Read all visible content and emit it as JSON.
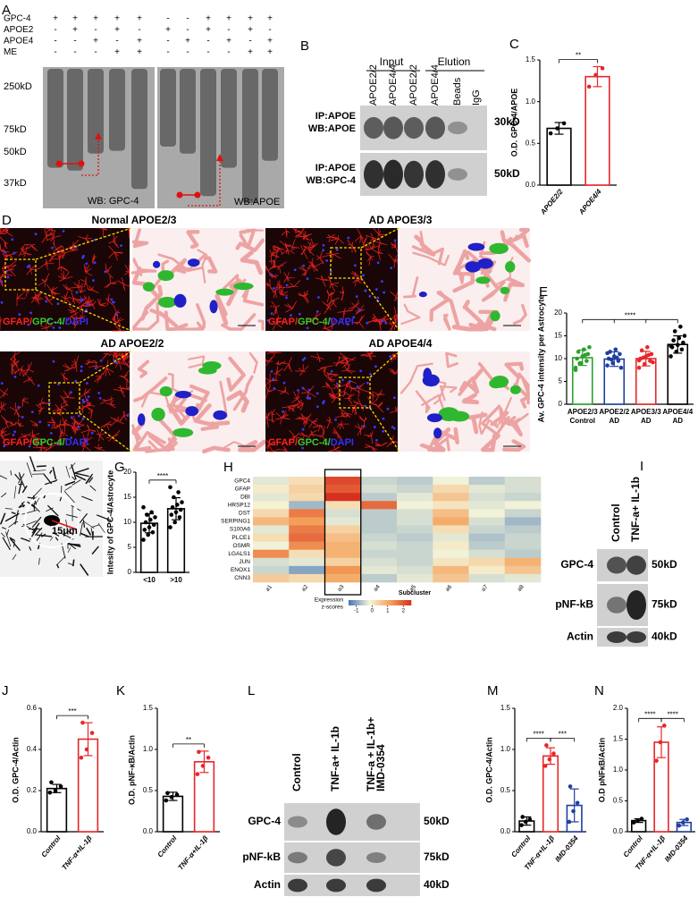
{
  "figure": {
    "panel_labels": [
      "A",
      "B",
      "C",
      "D",
      "E",
      "F",
      "G",
      "H",
      "I",
      "J",
      "K",
      "L",
      "M",
      "N"
    ],
    "panel_a": {
      "lane_rows": [
        {
          "label": "GPC-4",
          "signs": [
            "+",
            "+",
            "+",
            "+",
            "+",
            "-",
            "-",
            "+",
            "+",
            "+",
            "+"
          ]
        },
        {
          "label": "APOE2",
          "signs": [
            "-",
            "+",
            "-",
            "+",
            "-",
            "+",
            "-",
            "+",
            "-",
            "+",
            "-"
          ]
        },
        {
          "label": "APOE4",
          "signs": [
            "-",
            "-",
            "+",
            "-",
            "+",
            "-",
            "+",
            "-",
            "+",
            "-",
            "+"
          ]
        },
        {
          "label": "ME",
          "signs": [
            "-",
            "-",
            "-",
            "+",
            "+",
            "-",
            "-",
            "-",
            "-",
            "+",
            "+"
          ]
        }
      ],
      "mw": [
        "250kD",
        "75kD",
        "50kD",
        "37kD"
      ],
      "wb": [
        "WB: GPC-4",
        "WB:APOE"
      ]
    },
    "panel_b": {
      "groups": [
        "Input",
        "Elution"
      ],
      "lanes": [
        "APOE2/2",
        "APOE4/4",
        "APOE2/2",
        "APOE4/4",
        "Beads",
        "IgG"
      ],
      "rows": [
        {
          "label": [
            "IP:APOE",
            "WB:APOE"
          ],
          "mw": "30kD"
        },
        {
          "label": [
            "IP:APOE",
            "WB:GPC-4"
          ],
          "mw": "50kD"
        }
      ]
    },
    "panel_d": {
      "titles": [
        "Normal APOE2/3",
        "AD APOE3/3",
        "AD APOE2/2",
        "AD APOE4/4"
      ],
      "stain": [
        "GFAP/",
        "GPC-4/",
        "DAPI"
      ]
    },
    "panel_f": {
      "scale": "15μm"
    },
    "panel_i": {
      "lanes": [
        [
          "Control"
        ],
        [
          "TNF-a+ IL-1b"
        ]
      ],
      "rows": [
        {
          "label": "GPC-4",
          "mw": "50kD"
        },
        {
          "label": "pNF-kB",
          "mw": "75kD"
        },
        {
          "label": "Actin",
          "mw": "40kD"
        }
      ]
    },
    "panel_l": {
      "lanes": [
        [
          "Control"
        ],
        [
          "TNF-a+ IL-1b"
        ],
        [
          "TNF-a + IL-1b+",
          "IMD-0354"
        ]
      ],
      "rows": [
        {
          "label": "GPC-4",
          "mw": "50kD"
        },
        {
          "label": "pNF-kB",
          "mw": "75kD"
        },
        {
          "label": "Actin",
          "mw": "40kD"
        }
      ]
    }
  },
  "chart_data": [
    {
      "type": "bar",
      "ylabel": "O.D. GPC-4/APOE",
      "categories": [
        [
          "APOE2/2"
        ],
        [
          "APOE4/4"
        ]
      ],
      "values": [
        0.68,
        1.3
      ],
      "errors": [
        0.07,
        0.12
      ],
      "points": [
        [
          0.62,
          0.68,
          0.74
        ],
        [
          1.18,
          1.32,
          1.4
        ]
      ],
      "colors": [
        "#000000",
        "#e8262a"
      ],
      "ylim": [
        0,
        1.5
      ],
      "yticks": [
        {
          "value": 0,
          "label": "0.0"
        },
        0.5,
        {
          "value": 1,
          "label": "1.0"
        },
        1.5
      ],
      "significance": [
        {
          "between": [
            0,
            1
          ],
          "label": "**"
        }
      ]
    },
    {
      "type": "bar",
      "ylabel": "Av. GPC-4 intensity per Astrocyte",
      "categories": [
        [
          "APOE2/3",
          "Control"
        ],
        [
          "APOE2/2",
          "AD"
        ],
        [
          "APOE3/3",
          "AD"
        ],
        [
          "APOE4/4",
          "AD"
        ]
      ],
      "values": [
        10.2,
        9.9,
        10.0,
        13.1
      ],
      "errors": [
        1.7,
        1.6,
        1.6,
        1.9
      ],
      "points": [
        [
          8,
          9,
          9.5,
          10,
          10.5,
          11,
          11.5,
          12,
          12.5,
          9,
          10.8,
          7.5
        ],
        [
          8.5,
          9,
          9.5,
          10,
          10.5,
          11,
          11.5,
          12,
          8,
          9.8,
          10.2,
          11.2
        ],
        [
          8,
          8.8,
          9.5,
          10,
          10.5,
          11,
          11.8,
          12.5,
          9.2,
          10.2,
          10.8,
          9.6
        ],
        [
          10.5,
          11.5,
          12,
          12.5,
          13,
          13.5,
          14,
          14.5,
          15,
          16,
          17,
          12.8
        ]
      ],
      "colors": [
        "#2ca02c",
        "#1f3fa0",
        "#e8262a",
        "#000000"
      ],
      "ylim": [
        0,
        20
      ],
      "yticks": [
        0,
        5,
        10,
        15,
        20
      ],
      "significance": [
        {
          "between": [
            0,
            3
          ],
          "label": "****"
        }
      ]
    },
    {
      "type": "bar",
      "ylabel": "Intesity of GPC-4/Astrocyte",
      "categories": [
        [
          "<10"
        ],
        [
          ">10"
        ]
      ],
      "values": [
        9.8,
        12.7
      ],
      "errors": [
        1.9,
        2.2
      ],
      "points": [
        [
          6.5,
          7.5,
          8,
          8.5,
          9,
          9.5,
          10,
          10.5,
          11,
          11.5,
          12,
          13
        ],
        [
          9,
          10,
          11,
          11.5,
          12,
          12.5,
          13,
          13.5,
          14,
          15,
          16,
          17
        ]
      ],
      "colors": [
        "#000000",
        "#000000"
      ],
      "ylim": [
        0,
        20
      ],
      "yticks": [
        0,
        5,
        10,
        15,
        20
      ],
      "significance": [
        {
          "between": [
            0,
            1
          ],
          "label": "****"
        }
      ]
    },
    {
      "type": "bar",
      "ylabel": "O.D. GPC-4/Actin",
      "categories": [
        [
          "Control"
        ],
        [
          "TNF-α+IL-1β"
        ]
      ],
      "values": [
        0.21,
        0.45
      ],
      "errors": [
        0.02,
        0.08
      ],
      "points": [
        [
          0.19,
          0.2,
          0.22,
          0.24
        ],
        [
          0.36,
          0.4,
          0.48,
          0.53
        ]
      ],
      "colors": [
        "#000000",
        "#e8262a"
      ],
      "ylim": [
        0,
        0.6
      ],
      "yticks": [
        {
          "value": 0,
          "label": "0.0"
        },
        0.2,
        0.4,
        0.6
      ],
      "significance": [
        {
          "between": [
            0,
            1
          ],
          "label": "***"
        }
      ]
    },
    {
      "type": "bar",
      "ylabel": "O.D. pNF-κB/Actin",
      "categories": [
        [
          "Control"
        ],
        [
          "TNF-α+IL-1β"
        ]
      ],
      "values": [
        0.43,
        0.85
      ],
      "errors": [
        0.05,
        0.13
      ],
      "points": [
        [
          0.38,
          0.42,
          0.45,
          0.47
        ],
        [
          0.7,
          0.8,
          0.9,
          0.97
        ]
      ],
      "colors": [
        "#000000",
        "#e8262a"
      ],
      "ylim": [
        0,
        1.5
      ],
      "yticks": [
        {
          "value": 0,
          "label": "0.0"
        },
        0.5,
        {
          "value": 1,
          "label": "1.0"
        },
        1.5
      ],
      "significance": [
        {
          "between": [
            0,
            1
          ],
          "label": "**"
        }
      ]
    },
    {
      "type": "bar",
      "ylabel": "O.D. GPC-4/Actin",
      "categories": [
        [
          "Control"
        ],
        [
          "TNF-α+IL-1β"
        ],
        [
          "IMD-0354"
        ]
      ],
      "values": [
        0.13,
        0.92,
        0.32
      ],
      "errors": [
        0.05,
        0.1,
        0.2
      ],
      "points": [
        [
          0.08,
          0.12,
          0.15,
          0.18
        ],
        [
          0.8,
          0.88,
          0.95,
          1.05
        ],
        [
          0.12,
          0.25,
          0.35,
          0.55
        ]
      ],
      "colors": [
        "#000000",
        "#e8262a",
        "#1f3fa0"
      ],
      "ylim": [
        0,
        1.5
      ],
      "yticks": [
        {
          "value": 0,
          "label": "0.0"
        },
        0.5,
        {
          "value": 1,
          "label": "1.0"
        },
        1.5
      ],
      "significance": [
        {
          "between": [
            0,
            1
          ],
          "label": "****"
        },
        {
          "between": [
            1,
            2
          ],
          "label": "***"
        }
      ]
    },
    {
      "type": "bar",
      "ylabel": "O.D pNFκB/Actin",
      "categories": [
        [
          "Control"
        ],
        [
          "TNF-α+IL-1β"
        ],
        [
          "IMD-0354"
        ]
      ],
      "values": [
        0.18,
        1.45,
        0.15
      ],
      "errors": [
        0.03,
        0.25,
        0.05
      ],
      "points": [
        [
          0.15,
          0.18,
          0.21
        ],
        [
          1.15,
          1.45,
          1.72
        ],
        [
          0.1,
          0.15,
          0.2
        ]
      ],
      "colors": [
        "#000000",
        "#e8262a",
        "#1f3fa0"
      ],
      "ylim": [
        0,
        2
      ],
      "yticks": [
        {
          "value": 0,
          "label": "0.0"
        },
        0.5,
        {
          "value": 1,
          "label": "1.0"
        },
        1.5,
        {
          "value": 2,
          "label": "2.0"
        }
      ],
      "significance": [
        {
          "between": [
            0,
            1
          ],
          "label": "****"
        },
        {
          "between": [
            1,
            2
          ],
          "label": "****"
        }
      ]
    },
    {
      "type": "heatmap",
      "xlabel": "Subcluster",
      "columns": [
        "a1",
        "a2",
        "a3",
        "a4",
        "a5",
        "a6",
        "a7",
        "a8"
      ],
      "rows": [
        "GPC4",
        "GFAP",
        "DBI",
        "HRSP12",
        "DST",
        "SERPING1",
        "S100A6",
        "PLCE1",
        "OSMR",
        "LGALS1",
        "JUN",
        "ENOX1",
        "CNN3"
      ],
      "z": [
        [
          -0.3,
          0.2,
          2.2,
          -0.5,
          -0.6,
          -0.2,
          -0.6,
          -0.4
        ],
        [
          0.0,
          0.4,
          2.0,
          -0.4,
          -0.5,
          0.3,
          -0.3,
          -0.4
        ],
        [
          -0.3,
          0.3,
          2.5,
          -0.6,
          -0.3,
          0.6,
          -0.4,
          -0.5
        ],
        [
          -0.1,
          -0.8,
          0.2,
          1.8,
          -0.2,
          0.1,
          -0.3,
          -0.2
        ],
        [
          0.3,
          1.6,
          -0.4,
          -0.6,
          -0.4,
          0.7,
          -0.2,
          -0.5
        ],
        [
          0.8,
          1.2,
          -0.3,
          -0.6,
          -0.4,
          1.0,
          -0.4,
          -0.8
        ],
        [
          -0.3,
          1.6,
          0.4,
          -0.6,
          -0.5,
          0.2,
          -0.5,
          -0.6
        ],
        [
          0.2,
          1.8,
          0.7,
          -0.5,
          -0.6,
          -0.3,
          -0.7,
          -0.5
        ],
        [
          -0.2,
          1.4,
          0.9,
          -0.4,
          -0.5,
          0.0,
          -0.6,
          -0.5
        ],
        [
          1.4,
          0.2,
          0.9,
          -0.5,
          -0.5,
          -0.2,
          -0.4,
          -0.6
        ],
        [
          -0.4,
          -0.3,
          0.4,
          -0.4,
          -0.5,
          0.1,
          0.3,
          0.9
        ],
        [
          -0.5,
          -1.0,
          1.3,
          -0.3,
          -0.4,
          0.8,
          0.0,
          0.6
        ],
        [
          0.5,
          0.3,
          1.0,
          -0.6,
          -0.3,
          0.6,
          -0.4,
          -0.3
        ]
      ],
      "colorbar_label": [
        "Expression",
        "z-scores"
      ],
      "zlim": [
        -1.5,
        2.5
      ],
      "zticks": [
        -1,
        0,
        1,
        2
      ],
      "colormap": [
        "#4575b4",
        "#f5f5d8",
        "#f4a15a",
        "#d7301f"
      ],
      "highlight_column": "a3"
    }
  ]
}
